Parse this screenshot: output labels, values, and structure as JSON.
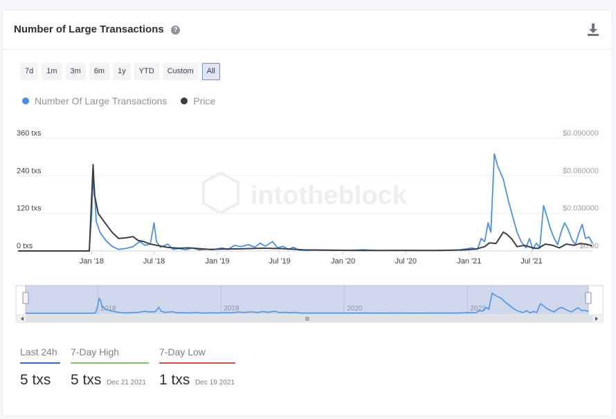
{
  "header": {
    "title": "Number of Large Transactions"
  },
  "ranges": [
    "7d",
    "1m",
    "3m",
    "6m",
    "1y",
    "YTD",
    "Custom",
    "All"
  ],
  "active_range": "All",
  "legend": [
    {
      "label": "Number Of Large Transactions",
      "color": "#4a90e2"
    },
    {
      "label": "Price",
      "color": "#3a3d42"
    }
  ],
  "watermark": "intotheblock",
  "chart_data": {
    "type": "line",
    "y_left_ticks": [
      "0 txs",
      "120 txs",
      "240 txs",
      "360 txs"
    ],
    "y_left_range": [
      0,
      360
    ],
    "y_right_ticks": [
      "$0.00",
      "$0.030000",
      "$0.060000",
      "$0.090000"
    ],
    "y_right_range": [
      0,
      0.09
    ],
    "x_ticks": [
      "Jan '18",
      "Jul '18",
      "Jan '19",
      "Jul '19",
      "Jan '20",
      "Jul '20",
      "Jan '21",
      "Jul '21"
    ],
    "x_range": [
      "2017-06-01",
      "2021-12-25"
    ],
    "navigator_labels": [
      "2018",
      "2019",
      "2020",
      "2021"
    ],
    "series": [
      {
        "name": "Number Of Large Transactions",
        "axis": "left",
        "color": "#4a90e2",
        "points": [
          [
            "2017-06-01",
            0
          ],
          [
            "2017-12-10",
            0
          ],
          [
            "2017-12-25",
            2
          ],
          [
            "2018-01-01",
            120
          ],
          [
            "2018-01-05",
            230
          ],
          [
            "2018-01-09",
            200
          ],
          [
            "2018-01-14",
            95
          ],
          [
            "2018-01-25",
            60
          ],
          [
            "2018-02-10",
            35
          ],
          [
            "2018-03-01",
            15
          ],
          [
            "2018-03-20",
            5
          ],
          [
            "2018-04-10",
            8
          ],
          [
            "2018-05-01",
            14
          ],
          [
            "2018-05-20",
            30
          ],
          [
            "2018-06-05",
            18
          ],
          [
            "2018-06-20",
            22
          ],
          [
            "2018-07-01",
            90
          ],
          [
            "2018-07-08",
            30
          ],
          [
            "2018-07-20",
            12
          ],
          [
            "2018-08-10",
            22
          ],
          [
            "2018-08-25",
            5
          ],
          [
            "2018-09-10",
            8
          ],
          [
            "2018-10-01",
            4
          ],
          [
            "2018-10-20",
            10
          ],
          [
            "2018-11-10",
            3
          ],
          [
            "2018-12-01",
            6
          ],
          [
            "2018-12-20",
            4
          ],
          [
            "2019-01-15",
            10
          ],
          [
            "2019-02-01",
            5
          ],
          [
            "2019-02-20",
            18
          ],
          [
            "2019-03-10",
            14
          ],
          [
            "2019-04-01",
            20
          ],
          [
            "2019-04-20",
            12
          ],
          [
            "2019-05-05",
            25
          ],
          [
            "2019-05-20",
            15
          ],
          [
            "2019-06-10",
            30
          ],
          [
            "2019-06-25",
            10
          ],
          [
            "2019-07-10",
            15
          ],
          [
            "2019-07-25",
            5
          ],
          [
            "2019-08-10",
            12
          ],
          [
            "2019-08-25",
            3
          ],
          [
            "2019-09-15",
            2
          ],
          [
            "2019-10-15",
            3
          ],
          [
            "2019-12-01",
            2
          ],
          [
            "2020-01-15",
            2
          ],
          [
            "2020-03-01",
            4
          ],
          [
            "2020-04-15",
            1
          ],
          [
            "2020-06-01",
            2
          ],
          [
            "2020-08-01",
            1
          ],
          [
            "2020-10-01",
            2
          ],
          [
            "2020-12-01",
            3
          ],
          [
            "2021-01-10",
            10
          ],
          [
            "2021-01-25",
            5
          ],
          [
            "2021-02-05",
            40
          ],
          [
            "2021-02-15",
            30
          ],
          [
            "2021-02-25",
            90
          ],
          [
            "2021-03-05",
            60
          ],
          [
            "2021-03-15",
            310
          ],
          [
            "2021-03-25",
            270
          ],
          [
            "2021-04-10",
            230
          ],
          [
            "2021-04-25",
            160
          ],
          [
            "2021-05-10",
            100
          ],
          [
            "2021-05-20",
            60
          ],
          [
            "2021-06-01",
            30
          ],
          [
            "2021-06-15",
            10
          ],
          [
            "2021-06-25",
            40
          ],
          [
            "2021-07-05",
            5
          ],
          [
            "2021-07-15",
            25
          ],
          [
            "2021-07-25",
            10
          ],
          [
            "2021-08-05",
            145
          ],
          [
            "2021-08-15",
            110
          ],
          [
            "2021-08-25",
            70
          ],
          [
            "2021-09-05",
            40
          ],
          [
            "2021-09-15",
            20
          ],
          [
            "2021-09-25",
            60
          ],
          [
            "2021-10-05",
            90
          ],
          [
            "2021-10-15",
            70
          ],
          [
            "2021-10-25",
            40
          ],
          [
            "2021-11-05",
            20
          ],
          [
            "2021-11-15",
            55
          ],
          [
            "2021-11-25",
            85
          ],
          [
            "2021-12-05",
            40
          ],
          [
            "2021-12-15",
            45
          ],
          [
            "2021-12-25",
            25
          ]
        ]
      },
      {
        "name": "Price",
        "axis": "right",
        "color": "#3a3d42",
        "points": [
          [
            "2017-06-01",
            0.0
          ],
          [
            "2017-12-25",
            0.0
          ],
          [
            "2018-01-02",
            0.05
          ],
          [
            "2018-01-05",
            0.069
          ],
          [
            "2018-01-09",
            0.045
          ],
          [
            "2018-01-20",
            0.03
          ],
          [
            "2018-02-10",
            0.022
          ],
          [
            "2018-03-01",
            0.015
          ],
          [
            "2018-03-20",
            0.01
          ],
          [
            "2018-04-10",
            0.0105
          ],
          [
            "2018-05-01",
            0.0115
          ],
          [
            "2018-05-15",
            0.0085
          ],
          [
            "2018-06-01",
            0.0075
          ],
          [
            "2018-06-20",
            0.0055
          ],
          [
            "2018-07-10",
            0.0045
          ],
          [
            "2018-08-10",
            0.0028
          ],
          [
            "2018-09-10",
            0.0022
          ],
          [
            "2018-10-10",
            0.0025
          ],
          [
            "2018-11-10",
            0.0019
          ],
          [
            "2018-12-10",
            0.0012
          ],
          [
            "2019-01-10",
            0.0015
          ],
          [
            "2019-03-10",
            0.0017
          ],
          [
            "2019-05-10",
            0.0022
          ],
          [
            "2019-07-10",
            0.0019
          ],
          [
            "2019-09-10",
            0.0009
          ],
          [
            "2019-12-10",
            0.0006
          ],
          [
            "2020-03-10",
            0.0004
          ],
          [
            "2020-07-10",
            0.0005
          ],
          [
            "2020-10-10",
            0.0004
          ],
          [
            "2020-12-20",
            0.0009
          ],
          [
            "2021-01-20",
            0.0015
          ],
          [
            "2021-02-15",
            0.0035
          ],
          [
            "2021-03-01",
            0.0065
          ],
          [
            "2021-03-20",
            0.006
          ],
          [
            "2021-04-10",
            0.015
          ],
          [
            "2021-04-20",
            0.0135
          ],
          [
            "2021-05-05",
            0.0095
          ],
          [
            "2021-05-20",
            0.0035
          ],
          [
            "2021-06-10",
            0.0045
          ],
          [
            "2021-07-05",
            0.0025
          ],
          [
            "2021-07-20",
            0.002
          ],
          [
            "2021-08-10",
            0.0055
          ],
          [
            "2021-09-01",
            0.0045
          ],
          [
            "2021-09-20",
            0.0025
          ],
          [
            "2021-10-10",
            0.0055
          ],
          [
            "2021-11-01",
            0.0045
          ],
          [
            "2021-11-20",
            0.006
          ],
          [
            "2021-12-10",
            0.0052
          ],
          [
            "2021-12-25",
            0.004
          ]
        ]
      }
    ]
  },
  "stats": [
    {
      "label": "Last 24h",
      "value": "5 txs",
      "date": "",
      "color": "#2f6fc4"
    },
    {
      "label": "7-Day High",
      "value": "5 txs",
      "date": "Dec 21 2021",
      "color": "#7cc65b"
    },
    {
      "label": "7-Day Low",
      "value": "1 txs",
      "date": "Dec 19 2021",
      "color": "#c9553f"
    }
  ]
}
